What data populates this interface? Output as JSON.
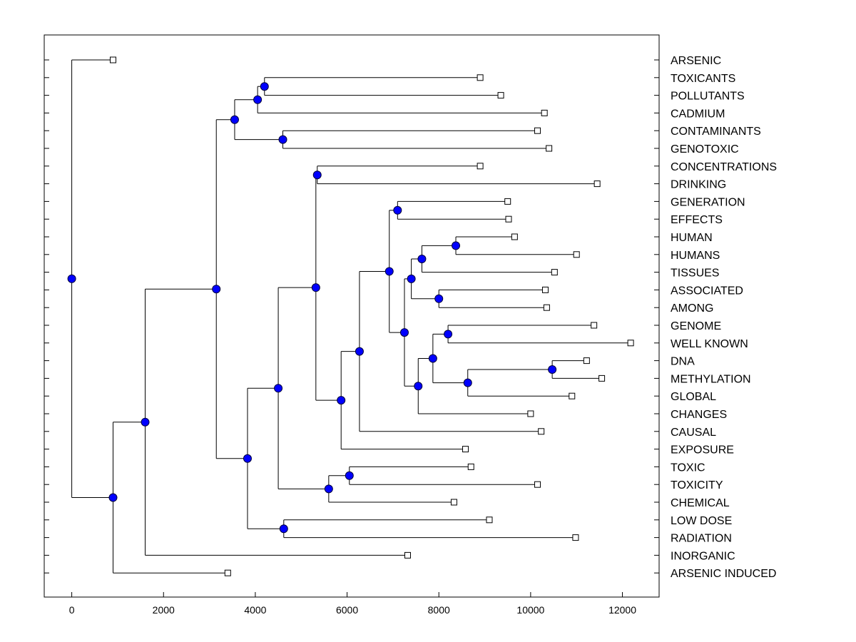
{
  "chart_data": {
    "type": "dendrogram",
    "title": "",
    "xlabel": "",
    "ylabel": "",
    "xlim": [
      -600,
      12800
    ],
    "xticks": [
      0,
      2000,
      4000,
      6000,
      8000,
      10000,
      12000
    ],
    "xtick_labels": [
      "0",
      "2000",
      "4000",
      "6000",
      "8000",
      "10000",
      "12000"
    ],
    "leaves": [
      {
        "label": "ARSENIC",
        "x": 900
      },
      {
        "label": "TOXICANTS",
        "x": 8900
      },
      {
        "label": "POLLUTANTS",
        "x": 9350
      },
      {
        "label": "CADMIUM",
        "x": 10300
      },
      {
        "label": "CONTAMINANTS",
        "x": 10150
      },
      {
        "label": "GENOTOXIC",
        "x": 10400
      },
      {
        "label": "CONCENTRATIONS",
        "x": 8900
      },
      {
        "label": "DRINKING",
        "x": 11450
      },
      {
        "label": "GENERATION",
        "x": 9500
      },
      {
        "label": "EFFECTS",
        "x": 9520
      },
      {
        "label": "HUMAN",
        "x": 9650
      },
      {
        "label": "HUMANS",
        "x": 11000
      },
      {
        "label": "TISSUES",
        "x": 10520
      },
      {
        "label": "ASSOCIATED",
        "x": 10320
      },
      {
        "label": "AMONG",
        "x": 10350
      },
      {
        "label": "GENOME",
        "x": 11380
      },
      {
        "label": "WELL KNOWN",
        "x": 12180
      },
      {
        "label": "DNA",
        "x": 11220
      },
      {
        "label": "METHYLATION",
        "x": 11550
      },
      {
        "label": "GLOBAL",
        "x": 10900
      },
      {
        "label": "CHANGES",
        "x": 10000
      },
      {
        "label": "CAUSAL",
        "x": 10230
      },
      {
        "label": "EXPOSURE",
        "x": 8580
      },
      {
        "label": "TOXIC",
        "x": 8700
      },
      {
        "label": "TOXICITY",
        "x": 10150
      },
      {
        "label": "CHEMICAL",
        "x": 8330
      },
      {
        "label": "LOW DOSE",
        "x": 9100
      },
      {
        "label": "RADIATION",
        "x": 10980
      },
      {
        "label": "INORGANIC",
        "x": 7320
      },
      {
        "label": "ARSENIC INDUCED",
        "x": 3400
      }
    ],
    "merges": [
      {
        "id": "n1",
        "x": 4200,
        "children": [
          "L1",
          "L2"
        ]
      },
      {
        "id": "n2",
        "x": 4050,
        "children": [
          "n1",
          "L3"
        ]
      },
      {
        "id": "n3",
        "x": 4600,
        "children": [
          "L4",
          "L5"
        ]
      },
      {
        "id": "n4",
        "x": 3550,
        "children": [
          "n2",
          "n3"
        ]
      },
      {
        "id": "n5",
        "x": 5350,
        "children": [
          "L6",
          "L7"
        ]
      },
      {
        "id": "n6",
        "x": 7100,
        "children": [
          "L8",
          "L9"
        ]
      },
      {
        "id": "n7",
        "x": 8370,
        "children": [
          "L10",
          "L11"
        ]
      },
      {
        "id": "n8",
        "x": 7630,
        "children": [
          "n7",
          "L12"
        ]
      },
      {
        "id": "n9",
        "x": 8000,
        "children": [
          "L13",
          "L14"
        ]
      },
      {
        "id": "n10",
        "x": 7400,
        "children": [
          "n8",
          "n9"
        ]
      },
      {
        "id": "n11",
        "x": 8200,
        "children": [
          "L15",
          "L16"
        ]
      },
      {
        "id": "n12",
        "x": 10470,
        "children": [
          "L17",
          "L18"
        ]
      },
      {
        "id": "n13",
        "x": 8630,
        "children": [
          "n12",
          "L19"
        ]
      },
      {
        "id": "n14",
        "x": 7870,
        "children": [
          "n11",
          "n13"
        ]
      },
      {
        "id": "n15",
        "x": 7550,
        "children": [
          "n14",
          "L20"
        ]
      },
      {
        "id": "n16",
        "x": 7250,
        "children": [
          "n10",
          "n15"
        ]
      },
      {
        "id": "n17",
        "x": 6920,
        "children": [
          "n6",
          "n16"
        ]
      },
      {
        "id": "n18",
        "x": 6270,
        "children": [
          "n17",
          "L21"
        ]
      },
      {
        "id": "n19",
        "x": 5870,
        "children": [
          "n18",
          "L22"
        ]
      },
      {
        "id": "n20",
        "x": 5320,
        "children": [
          "n5",
          "n19"
        ]
      },
      {
        "id": "n21",
        "x": 6050,
        "children": [
          "L23",
          "L24"
        ]
      },
      {
        "id": "n22",
        "x": 5600,
        "children": [
          "n21",
          "L25"
        ]
      },
      {
        "id": "n23",
        "x": 4500,
        "children": [
          "n20",
          "n22"
        ]
      },
      {
        "id": "n24",
        "x": 4620,
        "children": [
          "L26",
          "L27"
        ]
      },
      {
        "id": "n25",
        "x": 3830,
        "children": [
          "n23",
          "n24"
        ]
      },
      {
        "id": "n26",
        "x": 3150,
        "children": [
          "n4",
          "n25"
        ]
      },
      {
        "id": "n27",
        "x": 1600,
        "children": [
          "n26",
          "L28"
        ]
      },
      {
        "id": "n28",
        "x": 900,
        "children": [
          "n27",
          "L29"
        ]
      },
      {
        "id": "n29",
        "x": 0,
        "children": [
          "L0",
          "n28"
        ]
      }
    ],
    "colors": {
      "node": "#0000ff",
      "leaf": "#ffffff",
      "line": "#000000"
    }
  }
}
